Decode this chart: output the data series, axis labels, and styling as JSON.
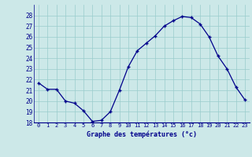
{
  "hours": [
    0,
    1,
    2,
    3,
    4,
    5,
    6,
    7,
    8,
    9,
    10,
    11,
    12,
    13,
    14,
    15,
    16,
    17,
    18,
    19,
    20,
    21,
    22,
    23
  ],
  "temps": [
    21.7,
    21.1,
    21.1,
    20.0,
    19.8,
    19.1,
    18.1,
    18.2,
    19.0,
    21.0,
    23.2,
    24.7,
    25.4,
    26.1,
    27.0,
    27.5,
    27.9,
    27.8,
    27.2,
    26.0,
    24.2,
    23.0,
    21.3,
    20.1
  ],
  "xlabel": "Graphe des températures (°c)",
  "bg_color": "#cce8e8",
  "line_color": "#00008b",
  "grid_color": "#99cccc",
  "text_color": "#00008b",
  "xlabel_bg": "#99bbcc",
  "ylim": [
    18,
    29
  ],
  "yticks": [
    18,
    19,
    20,
    21,
    22,
    23,
    24,
    25,
    26,
    27,
    28
  ],
  "xlim": [
    -0.5,
    23.5
  ],
  "xticks": [
    0,
    1,
    2,
    3,
    4,
    5,
    6,
    7,
    8,
    9,
    10,
    11,
    12,
    13,
    14,
    15,
    16,
    17,
    18,
    19,
    20,
    21,
    22,
    23
  ]
}
